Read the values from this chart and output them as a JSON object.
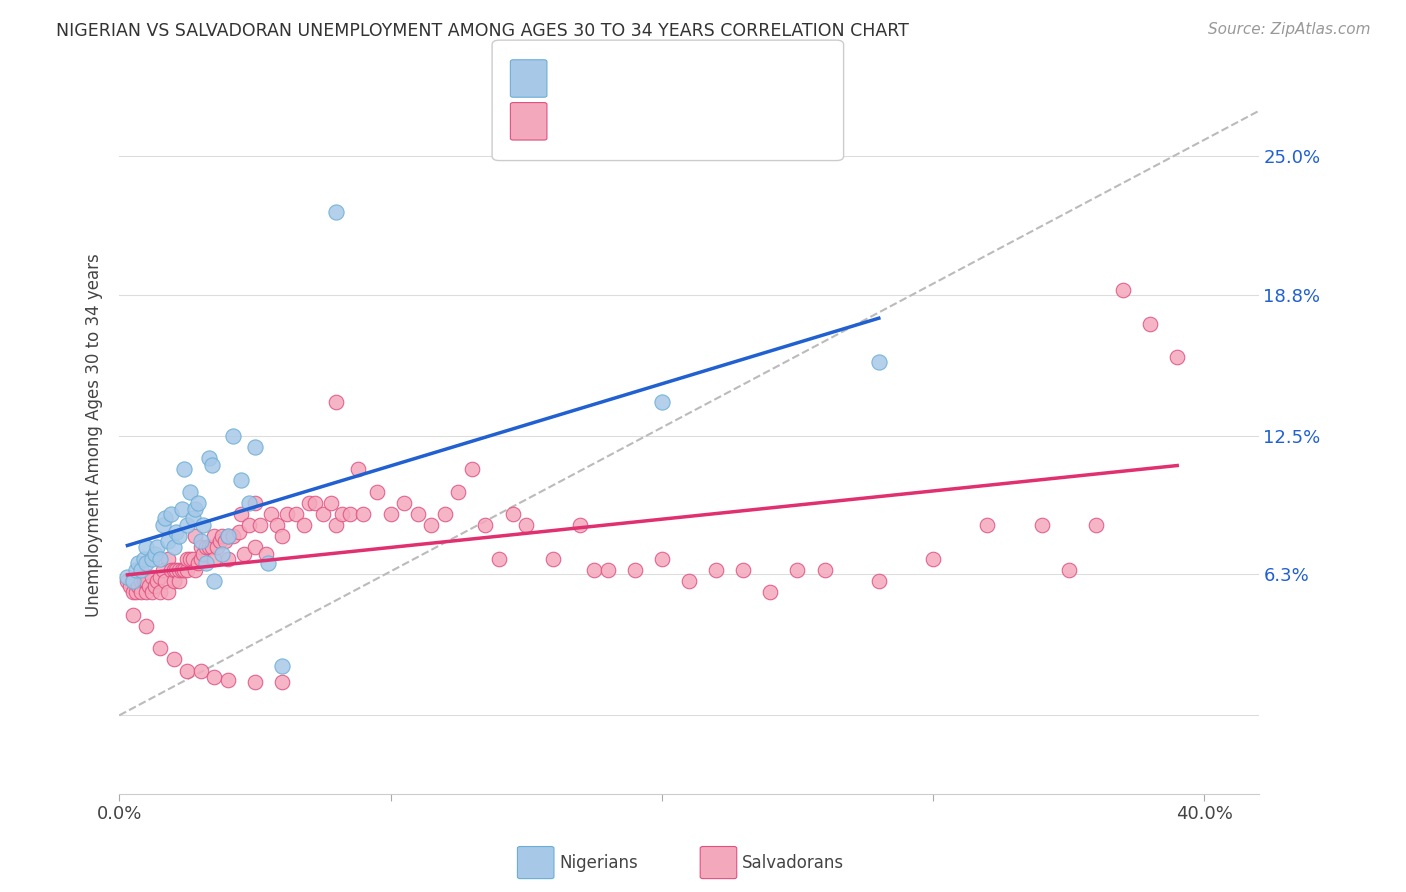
{
  "title": "NIGERIAN VS SALVADORAN UNEMPLOYMENT AMONG AGES 30 TO 34 YEARS CORRELATION CHART",
  "source": "Source: ZipAtlas.com",
  "ylabel": "Unemployment Among Ages 30 to 34 years",
  "yticks": [
    0.0,
    0.063,
    0.125,
    0.188,
    0.25
  ],
  "ytick_labels": [
    "",
    "6.3%",
    "12.5%",
    "18.8%",
    "25.0%"
  ],
  "xlim": [
    0.0,
    0.42
  ],
  "ylim": [
    -0.035,
    0.285
  ],
  "color_nigerian": "#a8c8e8",
  "color_salvadoran": "#f4a8bc",
  "color_edge_nigerian": "#6aaed6",
  "color_edge_salvadoran": "#e05080",
  "color_trend_nigerian": "#2060d0",
  "color_trend_salvadoran": "#e03070",
  "legend_label1": "Nigerians",
  "legend_label2": "Salvadorans",
  "nigerian_x": [
    0.003,
    0.005,
    0.006,
    0.007,
    0.008,
    0.009,
    0.01,
    0.01,
    0.012,
    0.013,
    0.014,
    0.015,
    0.016,
    0.017,
    0.018,
    0.019,
    0.02,
    0.021,
    0.022,
    0.023,
    0.024,
    0.025,
    0.026,
    0.027,
    0.028,
    0.029,
    0.03,
    0.031,
    0.032,
    0.033,
    0.034,
    0.035,
    0.038,
    0.04,
    0.042,
    0.045,
    0.048,
    0.05,
    0.055,
    0.06,
    0.08,
    0.2,
    0.28
  ],
  "nigerian_y": [
    0.062,
    0.06,
    0.065,
    0.068,
    0.065,
    0.07,
    0.068,
    0.075,
    0.07,
    0.072,
    0.075,
    0.07,
    0.085,
    0.088,
    0.078,
    0.09,
    0.075,
    0.082,
    0.08,
    0.092,
    0.11,
    0.085,
    0.1,
    0.088,
    0.092,
    0.095,
    0.078,
    0.085,
    0.068,
    0.115,
    0.112,
    0.06,
    0.072,
    0.08,
    0.125,
    0.105,
    0.095,
    0.12,
    0.068,
    0.022,
    0.225,
    0.14,
    0.158
  ],
  "salvadoran_x": [
    0.003,
    0.004,
    0.005,
    0.006,
    0.007,
    0.008,
    0.008,
    0.009,
    0.01,
    0.01,
    0.011,
    0.012,
    0.012,
    0.013,
    0.014,
    0.015,
    0.015,
    0.016,
    0.017,
    0.018,
    0.018,
    0.019,
    0.02,
    0.02,
    0.021,
    0.022,
    0.022,
    0.023,
    0.024,
    0.025,
    0.025,
    0.026,
    0.027,
    0.028,
    0.028,
    0.029,
    0.03,
    0.03,
    0.031,
    0.032,
    0.033,
    0.034,
    0.035,
    0.035,
    0.036,
    0.037,
    0.038,
    0.039,
    0.04,
    0.04,
    0.042,
    0.044,
    0.045,
    0.046,
    0.048,
    0.05,
    0.05,
    0.052,
    0.054,
    0.056,
    0.058,
    0.06,
    0.062,
    0.065,
    0.068,
    0.07,
    0.072,
    0.075,
    0.078,
    0.08,
    0.082,
    0.085,
    0.088,
    0.09,
    0.095,
    0.1,
    0.105,
    0.11,
    0.115,
    0.12,
    0.125,
    0.13,
    0.135,
    0.14,
    0.145,
    0.15,
    0.16,
    0.17,
    0.175,
    0.18,
    0.19,
    0.2,
    0.21,
    0.22,
    0.23,
    0.24,
    0.25,
    0.26,
    0.28,
    0.3,
    0.32,
    0.34,
    0.35,
    0.36,
    0.37,
    0.38,
    0.39,
    0.005,
    0.01,
    0.015,
    0.02,
    0.025,
    0.03,
    0.035,
    0.04,
    0.05,
    0.06,
    0.08
  ],
  "salvadoran_y": [
    0.06,
    0.058,
    0.055,
    0.055,
    0.058,
    0.06,
    0.055,
    0.06,
    0.055,
    0.06,
    0.058,
    0.055,
    0.062,
    0.058,
    0.06,
    0.055,
    0.062,
    0.065,
    0.06,
    0.055,
    0.07,
    0.065,
    0.06,
    0.065,
    0.065,
    0.06,
    0.065,
    0.065,
    0.065,
    0.065,
    0.07,
    0.07,
    0.07,
    0.065,
    0.08,
    0.068,
    0.07,
    0.075,
    0.072,
    0.075,
    0.075,
    0.075,
    0.07,
    0.08,
    0.075,
    0.078,
    0.08,
    0.078,
    0.07,
    0.08,
    0.08,
    0.082,
    0.09,
    0.072,
    0.085,
    0.075,
    0.095,
    0.085,
    0.072,
    0.09,
    0.085,
    0.08,
    0.09,
    0.09,
    0.085,
    0.095,
    0.095,
    0.09,
    0.095,
    0.085,
    0.09,
    0.09,
    0.11,
    0.09,
    0.1,
    0.09,
    0.095,
    0.09,
    0.085,
    0.09,
    0.1,
    0.11,
    0.085,
    0.07,
    0.09,
    0.085,
    0.07,
    0.085,
    0.065,
    0.065,
    0.065,
    0.07,
    0.06,
    0.065,
    0.065,
    0.055,
    0.065,
    0.065,
    0.06,
    0.07,
    0.085,
    0.085,
    0.065,
    0.085,
    0.19,
    0.175,
    0.16,
    0.045,
    0.04,
    0.03,
    0.025,
    0.02,
    0.02,
    0.017,
    0.016,
    0.015,
    0.015,
    0.14
  ]
}
